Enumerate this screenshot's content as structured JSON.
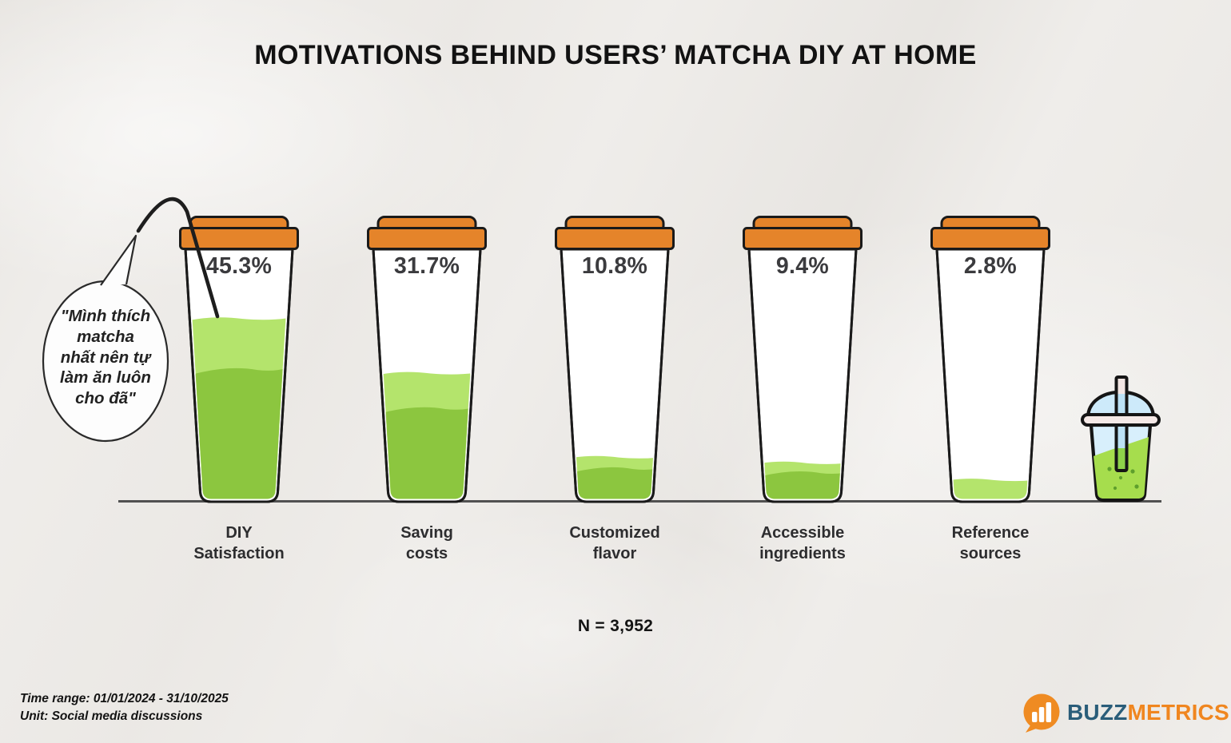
{
  "title": "MOTIVATIONS BEHIND USERS’ MATCHA DIY AT HOME",
  "quote_bubble": {
    "text": "\"Mình thích\nmatcha\nnhất nên tự\nlàm ăn luôn\ncho đã\""
  },
  "chart_data": {
    "type": "bar",
    "title": "MOTIVATIONS BEHIND USERS’ MATCHA DIY AT HOME",
    "categories": [
      "DIY Satisfaction",
      "Saving costs",
      "Customized flavor",
      "Accessible ingredients",
      "Reference sources"
    ],
    "values": [
      45.3,
      31.7,
      10.8,
      9.4,
      2.8
    ],
    "value_labels": [
      "45.3%",
      "31.7%",
      "10.8%",
      "9.4%",
      "2.8%"
    ],
    "category_labels": [
      "DIY\nSatisfaction",
      "Saving\ncosts",
      "Customized\nflavor",
      "Accessible\ningredients",
      "Reference\nsources"
    ],
    "unit": "Social media discussions",
    "sample_size": 3952,
    "annotation": "\"Mình thích matcha nhất nên tự làm ăn luôn cho đã\"",
    "legend": "none",
    "colors": {
      "liquid_light": "#b4e46c",
      "liquid_dark": "#8cc63f",
      "lid": "#e5842a",
      "outline": "#1a1a1a",
      "value_text": "#3b3b3e"
    }
  },
  "sample_label": "N = 3,952",
  "footer": {
    "time_range": "Time range: 01/01/2024 - 31/10/2025",
    "unit": "Unit: Social media discussions"
  },
  "logo": {
    "buzz": "BUZZ",
    "metrics": "METRICS",
    "buzz_color": "#2a5d79",
    "metrics_color": "#f0861f",
    "bubble_color": "#ef8b22"
  }
}
